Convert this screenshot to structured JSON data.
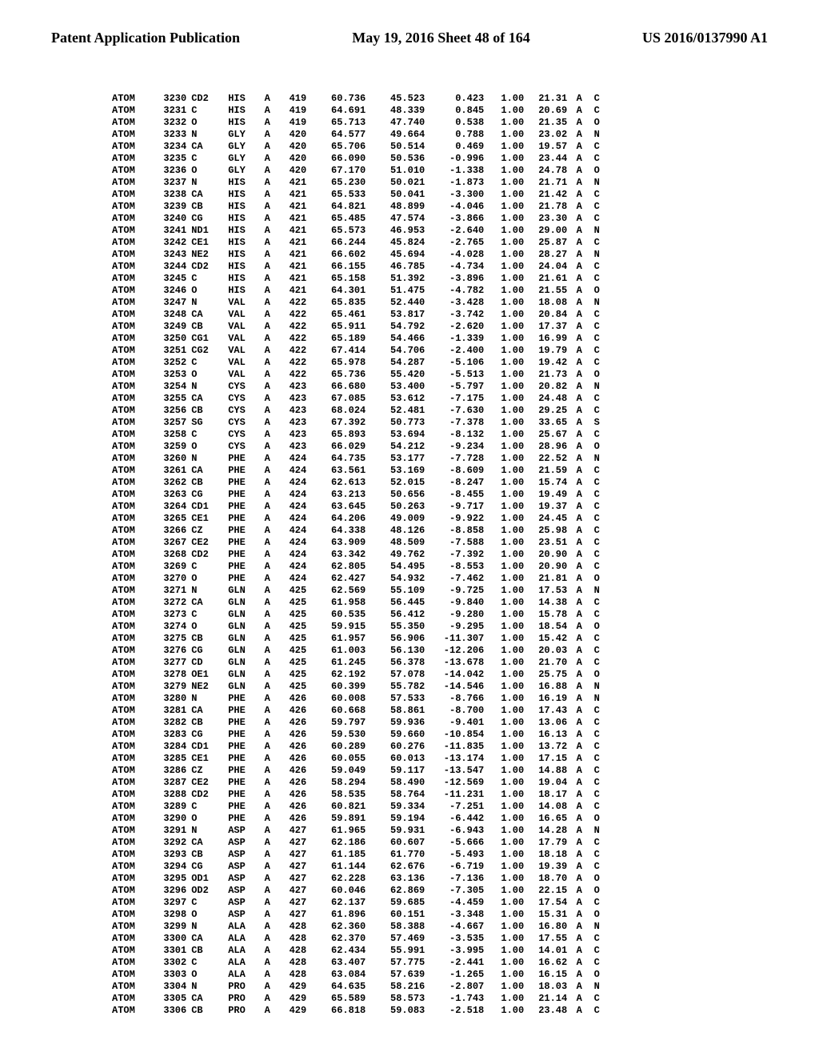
{
  "header": {
    "left": "Patent Application Publication",
    "center": "May 19, 2016  Sheet 48 of 164",
    "right": "US 2016/0137990 A1"
  },
  "columns": [
    "record",
    "serial",
    "name",
    "res",
    "chain",
    "seq",
    "x",
    "y",
    "z",
    "occ",
    "bfactor",
    "alt",
    "element"
  ],
  "rows": [
    [
      "ATOM",
      "3230",
      "CD2",
      "HIS",
      "A",
      "419",
      "60.736",
      "45.523",
      "0.423",
      "1.00",
      "21.31",
      "A",
      "C"
    ],
    [
      "ATOM",
      "3231",
      "C",
      "HIS",
      "A",
      "419",
      "64.691",
      "48.339",
      "0.845",
      "1.00",
      "20.69",
      "A",
      "C"
    ],
    [
      "ATOM",
      "3232",
      "O",
      "HIS",
      "A",
      "419",
      "65.713",
      "47.740",
      "0.538",
      "1.00",
      "21.35",
      "A",
      "O"
    ],
    [
      "ATOM",
      "3233",
      "N",
      "GLY",
      "A",
      "420",
      "64.577",
      "49.664",
      "0.788",
      "1.00",
      "23.02",
      "A",
      "N"
    ],
    [
      "ATOM",
      "3234",
      "CA",
      "GLY",
      "A",
      "420",
      "65.706",
      "50.514",
      "0.469",
      "1.00",
      "19.57",
      "A",
      "C"
    ],
    [
      "ATOM",
      "3235",
      "C",
      "GLY",
      "A",
      "420",
      "66.090",
      "50.536",
      "-0.996",
      "1.00",
      "23.44",
      "A",
      "C"
    ],
    [
      "ATOM",
      "3236",
      "O",
      "GLY",
      "A",
      "420",
      "67.170",
      "51.010",
      "-1.338",
      "1.00",
      "24.78",
      "A",
      "O"
    ],
    [
      "ATOM",
      "3237",
      "N",
      "HIS",
      "A",
      "421",
      "65.230",
      "50.021",
      "-1.873",
      "1.00",
      "21.71",
      "A",
      "N"
    ],
    [
      "ATOM",
      "3238",
      "CA",
      "HIS",
      "A",
      "421",
      "65.533",
      "50.041",
      "-3.300",
      "1.00",
      "21.42",
      "A",
      "C"
    ],
    [
      "ATOM",
      "3239",
      "CB",
      "HIS",
      "A",
      "421",
      "64.821",
      "48.899",
      "-4.046",
      "1.00",
      "21.78",
      "A",
      "C"
    ],
    [
      "ATOM",
      "3240",
      "CG",
      "HIS",
      "A",
      "421",
      "65.485",
      "47.574",
      "-3.866",
      "1.00",
      "23.30",
      "A",
      "C"
    ],
    [
      "ATOM",
      "3241",
      "ND1",
      "HIS",
      "A",
      "421",
      "65.573",
      "46.953",
      "-2.640",
      "1.00",
      "29.00",
      "A",
      "N"
    ],
    [
      "ATOM",
      "3242",
      "CE1",
      "HIS",
      "A",
      "421",
      "66.244",
      "45.824",
      "-2.765",
      "1.00",
      "25.87",
      "A",
      "C"
    ],
    [
      "ATOM",
      "3243",
      "NE2",
      "HIS",
      "A",
      "421",
      "66.602",
      "45.694",
      "-4.028",
      "1.00",
      "28.27",
      "A",
      "N"
    ],
    [
      "ATOM",
      "3244",
      "CD2",
      "HIS",
      "A",
      "421",
      "66.155",
      "46.785",
      "-4.734",
      "1.00",
      "24.04",
      "A",
      "C"
    ],
    [
      "ATOM",
      "3245",
      "C",
      "HIS",
      "A",
      "421",
      "65.158",
      "51.392",
      "-3.896",
      "1.00",
      "21.61",
      "A",
      "C"
    ],
    [
      "ATOM",
      "3246",
      "O",
      "HIS",
      "A",
      "421",
      "64.301",
      "51.475",
      "-4.782",
      "1.00",
      "21.55",
      "A",
      "O"
    ],
    [
      "ATOM",
      "3247",
      "N",
      "VAL",
      "A",
      "422",
      "65.835",
      "52.440",
      "-3.428",
      "1.00",
      "18.08",
      "A",
      "N"
    ],
    [
      "ATOM",
      "3248",
      "CA",
      "VAL",
      "A",
      "422",
      "65.461",
      "53.817",
      "-3.742",
      "1.00",
      "20.84",
      "A",
      "C"
    ],
    [
      "ATOM",
      "3249",
      "CB",
      "VAL",
      "A",
      "422",
      "65.911",
      "54.792",
      "-2.620",
      "1.00",
      "17.37",
      "A",
      "C"
    ],
    [
      "ATOM",
      "3250",
      "CG1",
      "VAL",
      "A",
      "422",
      "65.189",
      "54.466",
      "-1.339",
      "1.00",
      "16.99",
      "A",
      "C"
    ],
    [
      "ATOM",
      "3251",
      "CG2",
      "VAL",
      "A",
      "422",
      "67.414",
      "54.706",
      "-2.400",
      "1.00",
      "19.79",
      "A",
      "C"
    ],
    [
      "ATOM",
      "3252",
      "C",
      "VAL",
      "A",
      "422",
      "65.978",
      "54.287",
      "-5.106",
      "1.00",
      "19.42",
      "A",
      "C"
    ],
    [
      "ATOM",
      "3253",
      "O",
      "VAL",
      "A",
      "422",
      "65.736",
      "55.420",
      "-5.513",
      "1.00",
      "21.73",
      "A",
      "O"
    ],
    [
      "ATOM",
      "3254",
      "N",
      "CYS",
      "A",
      "423",
      "66.680",
      "53.400",
      "-5.797",
      "1.00",
      "20.82",
      "A",
      "N"
    ],
    [
      "ATOM",
      "3255",
      "CA",
      "CYS",
      "A",
      "423",
      "67.085",
      "53.612",
      "-7.175",
      "1.00",
      "24.48",
      "A",
      "C"
    ],
    [
      "ATOM",
      "3256",
      "CB",
      "CYS",
      "A",
      "423",
      "68.024",
      "52.481",
      "-7.630",
      "1.00",
      "29.25",
      "A",
      "C"
    ],
    [
      "ATOM",
      "3257",
      "SG",
      "CYS",
      "A",
      "423",
      "67.392",
      "50.773",
      "-7.378",
      "1.00",
      "33.65",
      "A",
      "S"
    ],
    [
      "ATOM",
      "3258",
      "C",
      "CYS",
      "A",
      "423",
      "65.893",
      "53.694",
      "-8.132",
      "1.00",
      "25.67",
      "A",
      "C"
    ],
    [
      "ATOM",
      "3259",
      "O",
      "CYS",
      "A",
      "423",
      "66.029",
      "54.212",
      "-9.234",
      "1.00",
      "28.96",
      "A",
      "O"
    ],
    [
      "ATOM",
      "3260",
      "N",
      "PHE",
      "A",
      "424",
      "64.735",
      "53.177",
      "-7.728",
      "1.00",
      "22.52",
      "A",
      "N"
    ],
    [
      "ATOM",
      "3261",
      "CA",
      "PHE",
      "A",
      "424",
      "63.561",
      "53.169",
      "-8.609",
      "1.00",
      "21.59",
      "A",
      "C"
    ],
    [
      "ATOM",
      "3262",
      "CB",
      "PHE",
      "A",
      "424",
      "62.613",
      "52.015",
      "-8.247",
      "1.00",
      "15.74",
      "A",
      "C"
    ],
    [
      "ATOM",
      "3263",
      "CG",
      "PHE",
      "A",
      "424",
      "63.213",
      "50.656",
      "-8.455",
      "1.00",
      "19.49",
      "A",
      "C"
    ],
    [
      "ATOM",
      "3264",
      "CD1",
      "PHE",
      "A",
      "424",
      "63.645",
      "50.263",
      "-9.717",
      "1.00",
      "19.37",
      "A",
      "C"
    ],
    [
      "ATOM",
      "3265",
      "CE1",
      "PHE",
      "A",
      "424",
      "64.206",
      "49.009",
      "-9.922",
      "1.00",
      "24.45",
      "A",
      "C"
    ],
    [
      "ATOM",
      "3266",
      "CZ",
      "PHE",
      "A",
      "424",
      "64.338",
      "48.126",
      "-8.858",
      "1.00",
      "25.98",
      "A",
      "C"
    ],
    [
      "ATOM",
      "3267",
      "CE2",
      "PHE",
      "A",
      "424",
      "63.909",
      "48.509",
      "-7.588",
      "1.00",
      "23.51",
      "A",
      "C"
    ],
    [
      "ATOM",
      "3268",
      "CD2",
      "PHE",
      "A",
      "424",
      "63.342",
      "49.762",
      "-7.392",
      "1.00",
      "20.90",
      "A",
      "C"
    ],
    [
      "ATOM",
      "3269",
      "C",
      "PHE",
      "A",
      "424",
      "62.805",
      "54.495",
      "-8.553",
      "1.00",
      "20.90",
      "A",
      "C"
    ],
    [
      "ATOM",
      "3270",
      "O",
      "PHE",
      "A",
      "424",
      "62.427",
      "54.932",
      "-7.462",
      "1.00",
      "21.81",
      "A",
      "O"
    ],
    [
      "ATOM",
      "3271",
      "N",
      "GLN",
      "A",
      "425",
      "62.569",
      "55.109",
      "-9.725",
      "1.00",
      "17.53",
      "A",
      "N"
    ],
    [
      "ATOM",
      "3272",
      "CA",
      "GLN",
      "A",
      "425",
      "61.958",
      "56.445",
      "-9.840",
      "1.00",
      "14.38",
      "A",
      "C"
    ],
    [
      "ATOM",
      "3273",
      "C",
      "GLN",
      "A",
      "425",
      "60.535",
      "56.412",
      "-9.280",
      "1.00",
      "15.78",
      "A",
      "C"
    ],
    [
      "ATOM",
      "3274",
      "O",
      "GLN",
      "A",
      "425",
      "59.915",
      "55.350",
      "-9.295",
      "1.00",
      "18.54",
      "A",
      "O"
    ],
    [
      "ATOM",
      "3275",
      "CB",
      "GLN",
      "A",
      "425",
      "61.957",
      "56.906",
      "-11.307",
      "1.00",
      "15.42",
      "A",
      "C"
    ],
    [
      "ATOM",
      "3276",
      "CG",
      "GLN",
      "A",
      "425",
      "61.003",
      "56.130",
      "-12.206",
      "1.00",
      "20.03",
      "A",
      "C"
    ],
    [
      "ATOM",
      "3277",
      "CD",
      "GLN",
      "A",
      "425",
      "61.245",
      "56.378",
      "-13.678",
      "1.00",
      "21.70",
      "A",
      "C"
    ],
    [
      "ATOM",
      "3278",
      "OE1",
      "GLN",
      "A",
      "425",
      "62.192",
      "57.078",
      "-14.042",
      "1.00",
      "25.75",
      "A",
      "O"
    ],
    [
      "ATOM",
      "3279",
      "NE2",
      "GLN",
      "A",
      "425",
      "60.399",
      "55.782",
      "-14.546",
      "1.00",
      "16.88",
      "A",
      "N"
    ],
    [
      "ATOM",
      "3280",
      "N",
      "PHE",
      "A",
      "426",
      "60.008",
      "57.533",
      "-8.766",
      "1.00",
      "16.19",
      "A",
      "N"
    ],
    [
      "ATOM",
      "3281",
      "CA",
      "PHE",
      "A",
      "426",
      "60.668",
      "58.861",
      "-8.700",
      "1.00",
      "17.43",
      "A",
      "C"
    ],
    [
      "ATOM",
      "3282",
      "CB",
      "PHE",
      "A",
      "426",
      "59.797",
      "59.936",
      "-9.401",
      "1.00",
      "13.06",
      "A",
      "C"
    ],
    [
      "ATOM",
      "3283",
      "CG",
      "PHE",
      "A",
      "426",
      "59.530",
      "59.660",
      "-10.854",
      "1.00",
      "16.13",
      "A",
      "C"
    ],
    [
      "ATOM",
      "3284",
      "CD1",
      "PHE",
      "A",
      "426",
      "60.289",
      "60.276",
      "-11.835",
      "1.00",
      "13.72",
      "A",
      "C"
    ],
    [
      "ATOM",
      "3285",
      "CE1",
      "PHE",
      "A",
      "426",
      "60.055",
      "60.013",
      "-13.174",
      "1.00",
      "17.15",
      "A",
      "C"
    ],
    [
      "ATOM",
      "3286",
      "CZ",
      "PHE",
      "A",
      "426",
      "59.049",
      "59.117",
      "-13.547",
      "1.00",
      "14.88",
      "A",
      "C"
    ],
    [
      "ATOM",
      "3287",
      "CE2",
      "PHE",
      "A",
      "426",
      "58.294",
      "58.490",
      "-12.569",
      "1.00",
      "19.04",
      "A",
      "C"
    ],
    [
      "ATOM",
      "3288",
      "CD2",
      "PHE",
      "A",
      "426",
      "58.535",
      "58.764",
      "-11.231",
      "1.00",
      "18.17",
      "A",
      "C"
    ],
    [
      "ATOM",
      "3289",
      "C",
      "PHE",
      "A",
      "426",
      "60.821",
      "59.334",
      "-7.251",
      "1.00",
      "14.08",
      "A",
      "C"
    ],
    [
      "ATOM",
      "3290",
      "O",
      "PHE",
      "A",
      "426",
      "59.891",
      "59.194",
      "-6.442",
      "1.00",
      "16.65",
      "A",
      "O"
    ],
    [
      "ATOM",
      "3291",
      "N",
      "ASP",
      "A",
      "427",
      "61.965",
      "59.931",
      "-6.943",
      "1.00",
      "14.28",
      "A",
      "N"
    ],
    [
      "ATOM",
      "3292",
      "CA",
      "ASP",
      "A",
      "427",
      "62.186",
      "60.607",
      "-5.666",
      "1.00",
      "17.79",
      "A",
      "C"
    ],
    [
      "ATOM",
      "3293",
      "CB",
      "ASP",
      "A",
      "427",
      "61.185",
      "61.770",
      "-5.493",
      "1.00",
      "18.18",
      "A",
      "C"
    ],
    [
      "ATOM",
      "3294",
      "CG",
      "ASP",
      "A",
      "427",
      "61.144",
      "62.676",
      "-6.719",
      "1.00",
      "19.39",
      "A",
      "C"
    ],
    [
      "ATOM",
      "3295",
      "OD1",
      "ASP",
      "A",
      "427",
      "62.228",
      "63.136",
      "-7.136",
      "1.00",
      "18.70",
      "A",
      "O"
    ],
    [
      "ATOM",
      "3296",
      "OD2",
      "ASP",
      "A",
      "427",
      "60.046",
      "62.869",
      "-7.305",
      "1.00",
      "22.15",
      "A",
      "O"
    ],
    [
      "ATOM",
      "3297",
      "C",
      "ASP",
      "A",
      "427",
      "62.137",
      "59.685",
      "-4.459",
      "1.00",
      "17.54",
      "A",
      "C"
    ],
    [
      "ATOM",
      "3298",
      "O",
      "ASP",
      "A",
      "427",
      "61.896",
      "60.151",
      "-3.348",
      "1.00",
      "15.31",
      "A",
      "O"
    ],
    [
      "ATOM",
      "3299",
      "N",
      "ALA",
      "A",
      "428",
      "62.360",
      "58.388",
      "-4.667",
      "1.00",
      "16.80",
      "A",
      "N"
    ],
    [
      "ATOM",
      "3300",
      "CA",
      "ALA",
      "A",
      "428",
      "62.370",
      "57.469",
      "-3.535",
      "1.00",
      "17.55",
      "A",
      "C"
    ],
    [
      "ATOM",
      "3301",
      "CB",
      "ALA",
      "A",
      "428",
      "62.434",
      "55.991",
      "-3.995",
      "1.00",
      "14.01",
      "A",
      "C"
    ],
    [
      "ATOM",
      "3302",
      "C",
      "ALA",
      "A",
      "428",
      "63.407",
      "57.775",
      "-2.441",
      "1.00",
      "16.62",
      "A",
      "C"
    ],
    [
      "ATOM",
      "3303",
      "O",
      "ALA",
      "A",
      "428",
      "63.084",
      "57.639",
      "-1.265",
      "1.00",
      "16.15",
      "A",
      "O"
    ],
    [
      "ATOM",
      "3304",
      "N",
      "PRO",
      "A",
      "429",
      "64.635",
      "58.216",
      "-2.807",
      "1.00",
      "18.03",
      "A",
      "N"
    ],
    [
      "ATOM",
      "3305",
      "CA",
      "PRO",
      "A",
      "429",
      "65.589",
      "58.573",
      "-1.743",
      "1.00",
      "21.14",
      "A",
      "C"
    ],
    [
      "ATOM",
      "3306",
      "CB",
      "PRO",
      "A",
      "429",
      "66.818",
      "59.083",
      "-2.518",
      "1.00",
      "23.48",
      "A",
      "C"
    ]
  ]
}
